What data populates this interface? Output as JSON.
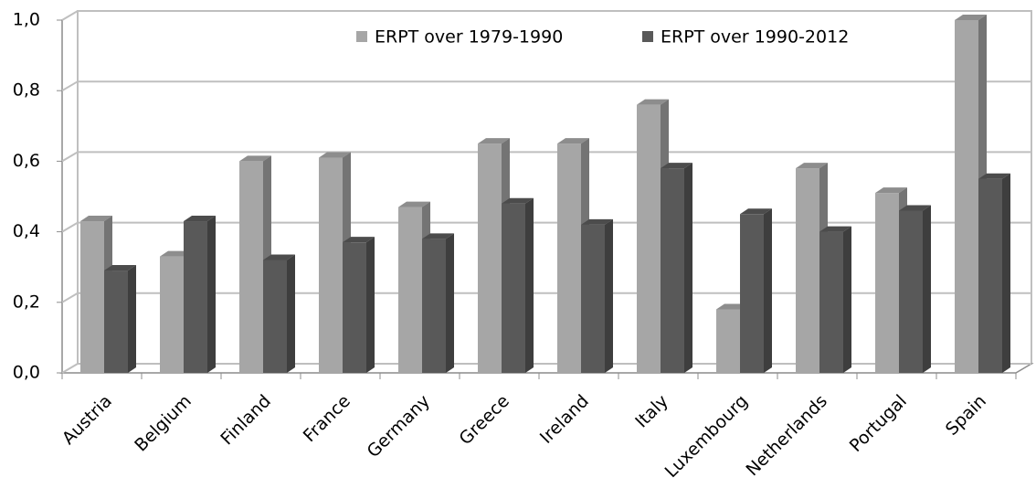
{
  "chart_data": {
    "type": "bar3d",
    "categories": [
      "Austria",
      "Belgium",
      "Finland",
      "France",
      "Germany",
      "Greece",
      "Ireland",
      "Italy",
      "Luxembourg",
      "Netherlands",
      "Portugal",
      "Spain"
    ],
    "series": [
      {
        "name": "ERPT over 1979-1990",
        "color": "#a6a6a6",
        "values": [
          0.43,
          0.33,
          0.6,
          0.61,
          0.47,
          0.65,
          0.65,
          0.76,
          0.18,
          0.58,
          0.51,
          1.0
        ]
      },
      {
        "name": "ERPT over 1990-2012",
        "color": "#595959",
        "values": [
          0.29,
          0.43,
          0.32,
          0.37,
          0.38,
          0.48,
          0.42,
          0.58,
          0.45,
          0.4,
          0.46,
          0.55
        ]
      }
    ],
    "ylim": [
      0,
      1
    ],
    "yticks": [
      {
        "value": 0,
        "label": "0,0"
      },
      {
        "value": 0.2,
        "label": "0,2"
      },
      {
        "value": 0.4,
        "label": "0,4"
      },
      {
        "value": 0.6,
        "label": "0,6"
      },
      {
        "value": 0.8,
        "label": "0,8"
      },
      {
        "value": 1,
        "label": "1,0"
      }
    ],
    "grid": true,
    "legend": "top"
  }
}
